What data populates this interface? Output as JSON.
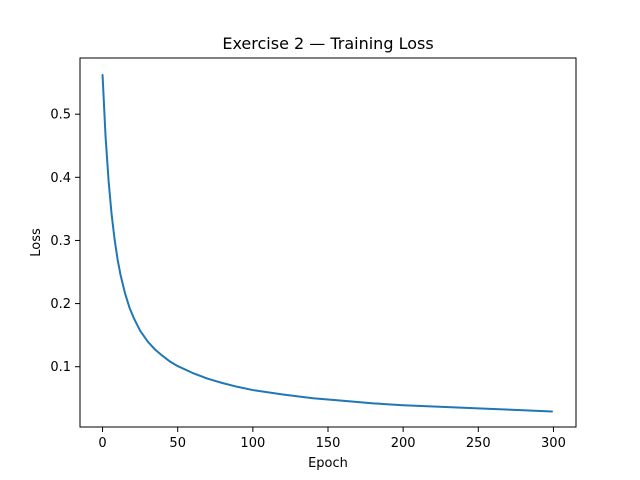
{
  "chart_data": {
    "type": "line",
    "title": "Exercise 2 — Training Loss",
    "xlabel": "Epoch",
    "ylabel": "Loss",
    "xlim": [
      -15,
      315
    ],
    "ylim": [
      0.0045,
      0.589
    ],
    "xticks": [
      0,
      50,
      100,
      150,
      200,
      250,
      300
    ],
    "yticks": [
      0.1,
      0.2,
      0.3,
      0.4,
      0.5
    ],
    "xtick_labels": [
      "0",
      "50",
      "100",
      "150",
      "200",
      "250",
      "300"
    ],
    "ytick_labels": [
      "0.1",
      "0.2",
      "0.3",
      "0.4",
      "0.5"
    ],
    "grid": false,
    "legend": "none",
    "series": [
      {
        "color": "#1f77b4",
        "x": [
          0,
          2,
          4,
          6,
          8,
          10,
          12,
          15,
          18,
          21,
          25,
          30,
          35,
          40,
          45,
          50,
          60,
          70,
          80,
          90,
          100,
          120,
          140,
          160,
          180,
          200,
          220,
          240,
          260,
          280,
          299
        ],
        "y": [
          0.562,
          0.465,
          0.395,
          0.342,
          0.302,
          0.27,
          0.245,
          0.216,
          0.193,
          0.176,
          0.157,
          0.14,
          0.127,
          0.117,
          0.108,
          0.101,
          0.09,
          0.081,
          0.074,
          0.068,
          0.063,
          0.056,
          0.05,
          0.046,
          0.042,
          0.039,
          0.037,
          0.035,
          0.033,
          0.031,
          0.029
        ]
      }
    ]
  }
}
